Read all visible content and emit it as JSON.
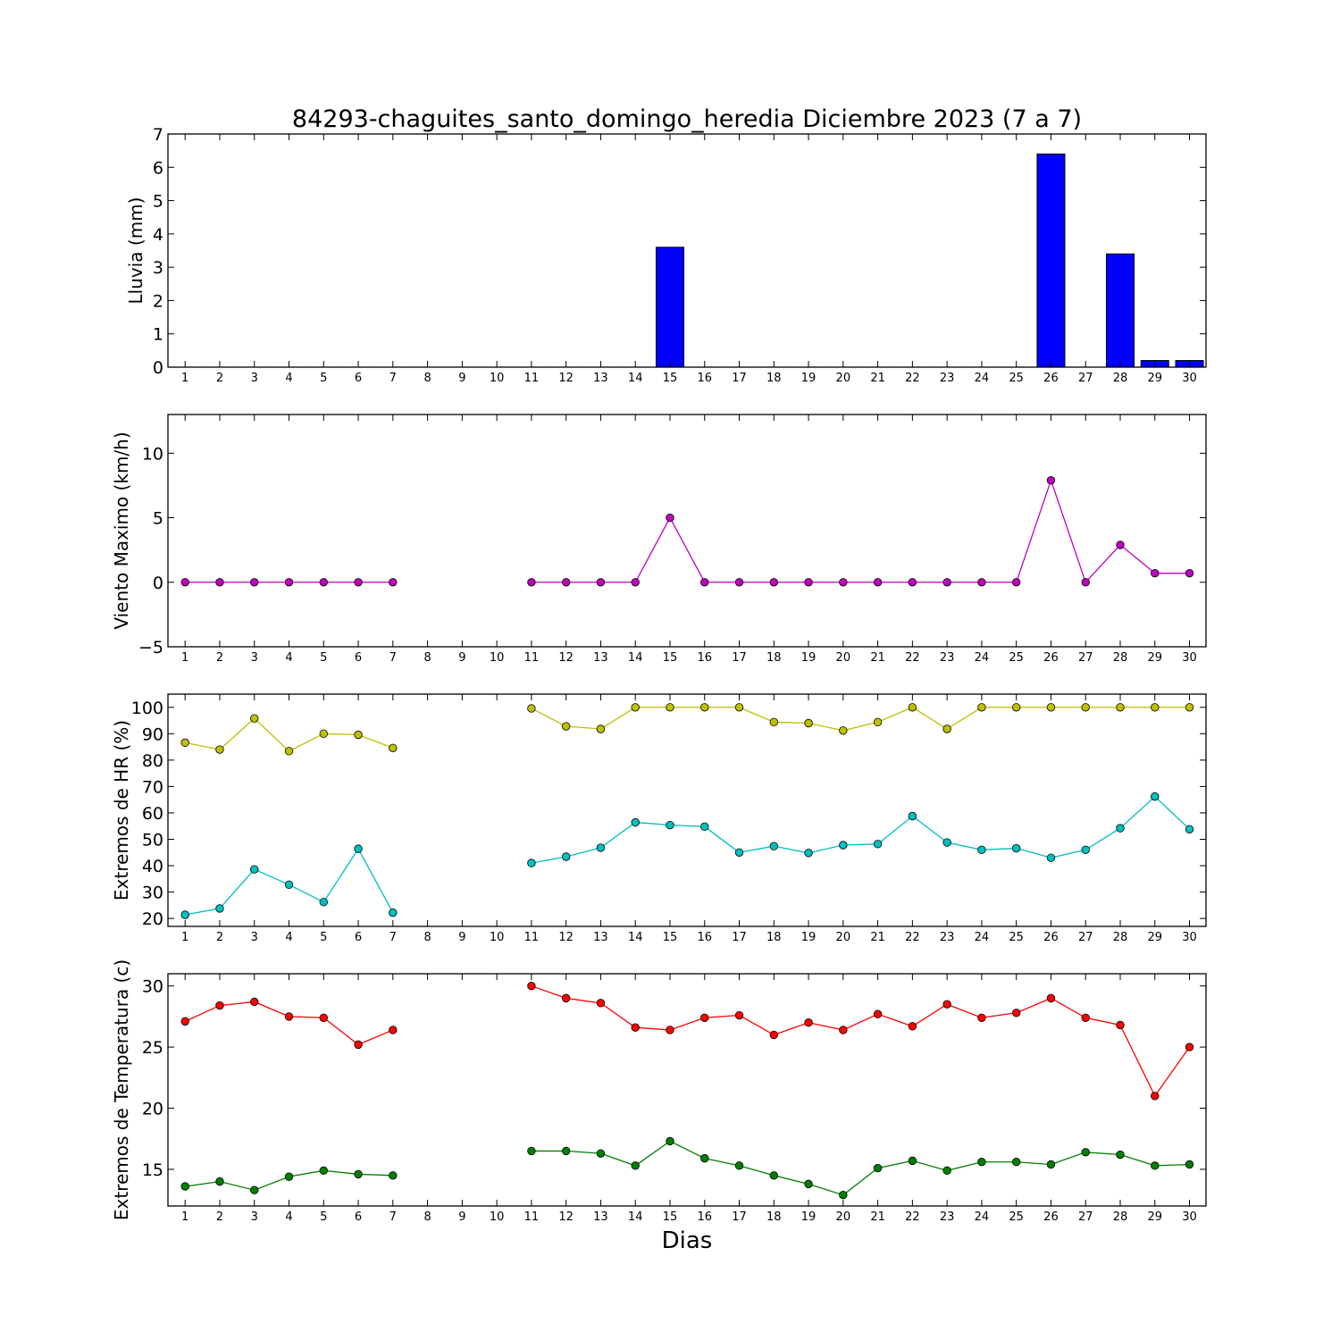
{
  "title": "84293-chaguites_santo_domingo_heredia Diciembre 2023  (7 a 7)",
  "chart_data": [
    {
      "type": "bar",
      "ylabel": "Lluvia (mm)",
      "ylim": [
        0,
        7
      ],
      "yticks": [
        0,
        1,
        2,
        3,
        4,
        5,
        6,
        7
      ],
      "categories": [
        1,
        2,
        3,
        4,
        5,
        6,
        7,
        8,
        9,
        10,
        11,
        12,
        13,
        14,
        15,
        16,
        17,
        18,
        19,
        20,
        21,
        22,
        23,
        24,
        25,
        26,
        27,
        28,
        29,
        30
      ],
      "series": [
        {
          "color": "#0000ff",
          "values": [
            0,
            0,
            0,
            0,
            0,
            0,
            0,
            null,
            null,
            null,
            0,
            0,
            0,
            0,
            3.6,
            0,
            0,
            0,
            0,
            0,
            0,
            0,
            0,
            0,
            0,
            6.4,
            0,
            3.4,
            0.2,
            0.2
          ]
        }
      ]
    },
    {
      "type": "line",
      "ylabel": "Viento Maximo (km/h)",
      "ylim": [
        -5,
        13
      ],
      "yticks": [
        -5,
        0,
        5,
        10
      ],
      "ytick_labels": [
        "−5",
        "0",
        "5",
        "10"
      ],
      "categories": [
        1,
        2,
        3,
        4,
        5,
        6,
        7,
        8,
        9,
        10,
        11,
        12,
        13,
        14,
        15,
        16,
        17,
        18,
        19,
        20,
        21,
        22,
        23,
        24,
        25,
        26,
        27,
        28,
        29,
        30
      ],
      "series": [
        {
          "color": "#bf00bf",
          "values": [
            0,
            0,
            0,
            0,
            0,
            0,
            0,
            null,
            null,
            null,
            0,
            0,
            0,
            0,
            5.0,
            0,
            0,
            0,
            0,
            0,
            0,
            0,
            0,
            0,
            0,
            7.9,
            0,
            2.9,
            0.7,
            0.7
          ]
        }
      ]
    },
    {
      "type": "line",
      "ylabel": "Extremos de HR (%)",
      "ylim": [
        17,
        105
      ],
      "yticks": [
        20,
        30,
        40,
        50,
        60,
        70,
        80,
        90,
        100
      ],
      "categories": [
        1,
        2,
        3,
        4,
        5,
        6,
        7,
        8,
        9,
        10,
        11,
        12,
        13,
        14,
        15,
        16,
        17,
        18,
        19,
        20,
        21,
        22,
        23,
        24,
        25,
        26,
        27,
        28,
        29,
        30
      ],
      "series": [
        {
          "color": "#bfbf00",
          "values": [
            86.6,
            84,
            95.8,
            83.4,
            90,
            89.6,
            84.6,
            null,
            null,
            null,
            99.6,
            92.8,
            91.8,
            100,
            100,
            100,
            100,
            94.4,
            94,
            91.2,
            94.4,
            100,
            91.8,
            100,
            100,
            100,
            100,
            100,
            100,
            100
          ]
        },
        {
          "color": "#00bfbf",
          "values": [
            21.4,
            23.8,
            38.6,
            32.8,
            26.2,
            46.4,
            22.2,
            null,
            null,
            null,
            41,
            43.4,
            46.8,
            56.4,
            55.4,
            54.8,
            45,
            47.4,
            44.8,
            47.8,
            48.2,
            58.8,
            48.8,
            46,
            46.6,
            43,
            46,
            54.2,
            66.2,
            53.8
          ]
        }
      ]
    },
    {
      "type": "line",
      "ylabel": "Extremos de Temperatura (c)",
      "xlabel": "Dias",
      "ylim": [
        12,
        31
      ],
      "yticks": [
        15,
        20,
        25,
        30
      ],
      "categories": [
        1,
        2,
        3,
        4,
        5,
        6,
        7,
        8,
        9,
        10,
        11,
        12,
        13,
        14,
        15,
        16,
        17,
        18,
        19,
        20,
        21,
        22,
        23,
        24,
        25,
        26,
        27,
        28,
        29,
        30
      ],
      "series": [
        {
          "color": "#ff0000",
          "values": [
            27.1,
            28.4,
            28.7,
            27.5,
            27.4,
            25.2,
            26.4,
            null,
            null,
            null,
            30,
            29,
            28.6,
            26.6,
            26.4,
            27.4,
            27.6,
            26,
            27,
            26.4,
            27.7,
            26.7,
            28.5,
            27.4,
            27.8,
            29,
            27.4,
            26.8,
            21,
            25
          ]
        },
        {
          "color": "#007f00",
          "values": [
            13.6,
            14,
            13.3,
            14.4,
            14.9,
            14.6,
            14.5,
            null,
            null,
            null,
            16.5,
            16.5,
            16.3,
            15.3,
            17.3,
            15.9,
            15.3,
            14.5,
            13.8,
            12.9,
            15.1,
            15.7,
            14.9,
            15.6,
            15.6,
            15.4,
            16.4,
            16.2,
            15.3,
            15.4
          ]
        }
      ]
    }
  ]
}
